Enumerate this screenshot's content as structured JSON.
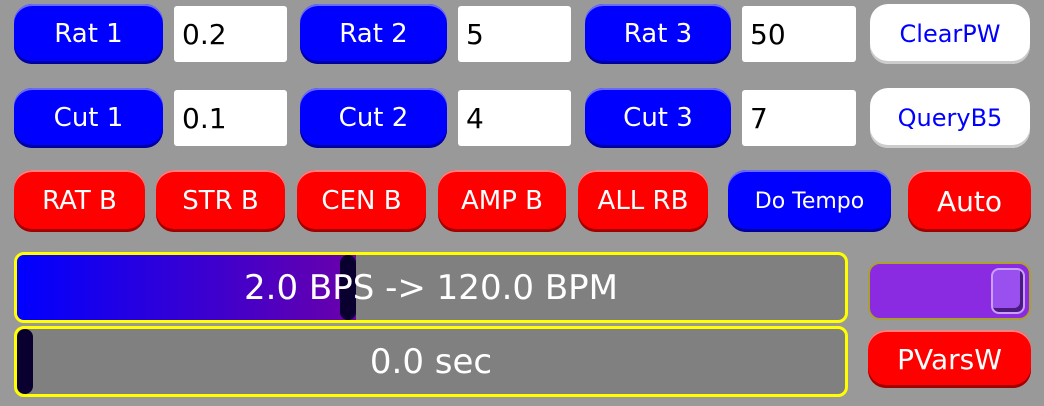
{
  "row1": [
    {
      "label": "Rat 1",
      "value": "0.2"
    },
    {
      "label": "Rat 2",
      "value": "5"
    },
    {
      "label": "Rat 3",
      "value": "50"
    }
  ],
  "row2": [
    {
      "label": "Cut 1",
      "value": "0.1"
    },
    {
      "label": "Cut 2",
      "value": "4"
    },
    {
      "label": "Cut 3",
      "value": "7"
    }
  ],
  "clear_pw": "ClearPW",
  "query_b5": "QueryB5",
  "row3": [
    "RAT B",
    "STR B",
    "CEN B",
    "AMP B",
    "ALL RB"
  ],
  "do_tempo": "Do Tempo",
  "auto": "Auto",
  "tempo_bar": {
    "text": "2.0 BPS -> 120.0 BPM",
    "fill_percent": 41
  },
  "time_bar": {
    "text": "0.0 sec",
    "fill_percent": 0
  },
  "slider": {
    "value_percent": 100,
    "color": "#8a2be2"
  },
  "pvars_w": "PVarsW",
  "colors": {
    "background": "#999999",
    "blue": "#0000ff",
    "red": "#ff0000",
    "border": "#ffff00"
  }
}
